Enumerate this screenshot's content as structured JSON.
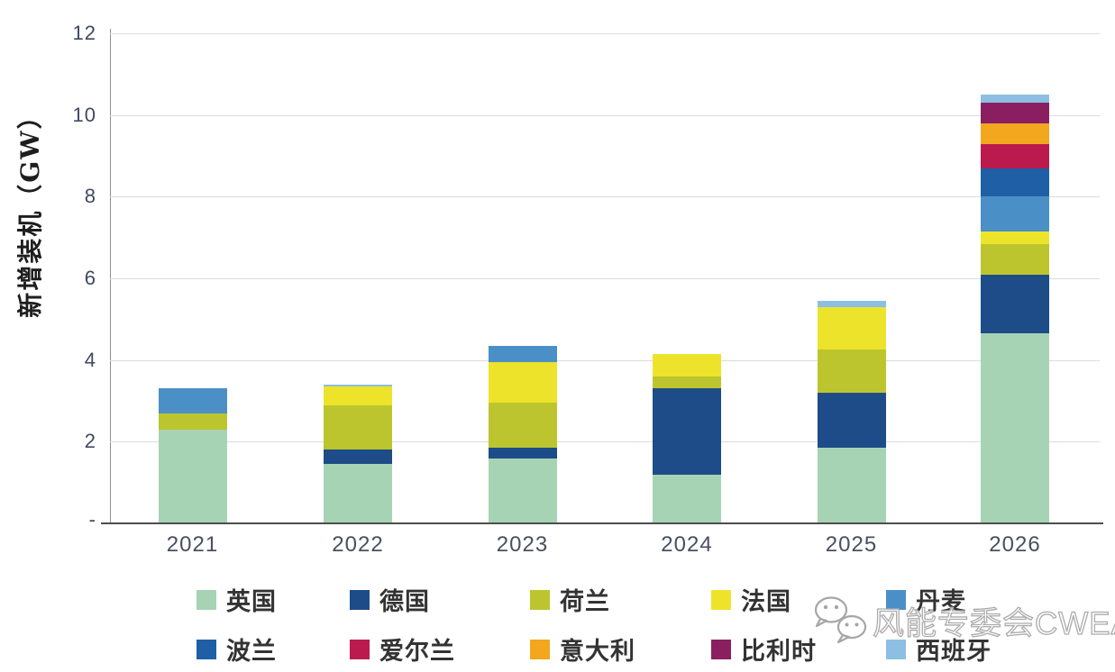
{
  "chart_data": {
    "type": "bar",
    "stacked": true,
    "title": "",
    "xlabel": "",
    "ylabel": "新增装机（GW）",
    "ylim": [
      0,
      12
    ],
    "ytick_interval": 2,
    "ytick_labels": [
      "12",
      "10",
      "8",
      "6",
      "4",
      "2",
      "-"
    ],
    "grid": true,
    "legend_position": "bottom",
    "categories": [
      "2021",
      "2022",
      "2023",
      "2024",
      "2025",
      "2026"
    ],
    "series": [
      {
        "name": "英国",
        "color": "#a7d3b5",
        "values": [
          2.3,
          1.45,
          1.6,
          1.2,
          1.85,
          4.65
        ]
      },
      {
        "name": "德国",
        "color": "#1d4c88",
        "values": [
          0,
          0.35,
          0.25,
          2.1,
          1.35,
          1.45
        ]
      },
      {
        "name": "荷兰",
        "color": "#bcc52d",
        "values": [
          0.4,
          1.1,
          1.1,
          0.3,
          1.05,
          0.75
        ]
      },
      {
        "name": "法国",
        "color": "#eee32b",
        "values": [
          0,
          0.45,
          1.0,
          0.55,
          1.05,
          0.3
        ]
      },
      {
        "name": "丹麦",
        "color": "#4a90c6",
        "values": [
          0.6,
          0,
          0.4,
          0,
          0,
          0.85
        ]
      },
      {
        "name": "波兰",
        "color": "#1f5fa6",
        "values": [
          0,
          0,
          0,
          0,
          0,
          0.7
        ]
      },
      {
        "name": "爱尔兰",
        "color": "#ba1a4e",
        "values": [
          0,
          0,
          0,
          0,
          0,
          0.6
        ]
      },
      {
        "name": "意大利",
        "color": "#f2a71f",
        "values": [
          0,
          0,
          0,
          0,
          0,
          0.5
        ]
      },
      {
        "name": "比利时",
        "color": "#8a1e60",
        "values": [
          0,
          0,
          0,
          0,
          0,
          0.5
        ]
      },
      {
        "name": "西班牙",
        "color": "#8cbfe2",
        "values": [
          0,
          0.05,
          0,
          0,
          0.15,
          0.2
        ]
      }
    ]
  },
  "watermark": {
    "text": "风能专委会CWEA",
    "icon": "wechat-icon"
  },
  "style_colors": {
    "gridline": "#dcdcdc",
    "x_axis": "#4d4d4d",
    "y_axis": "#8f8f8f",
    "tick_text": "#3f4a60",
    "legend_text": "#333333"
  }
}
